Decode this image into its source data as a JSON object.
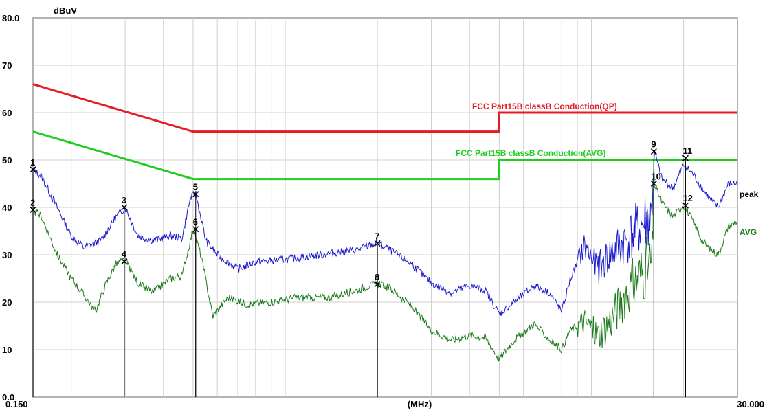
{
  "chart_data": {
    "type": "line",
    "title": "",
    "xlabel": "(MHz)",
    "ylabel": "dBuV",
    "x_scale": "log",
    "xlim": [
      0.15,
      30.0
    ],
    "ylim": [
      0,
      80
    ],
    "grid": true,
    "y_ticks": [
      {
        "value": 80,
        "label": "80.0"
      },
      {
        "value": 70,
        "label": "70"
      },
      {
        "value": 60,
        "label": "60"
      },
      {
        "value": 50,
        "label": "50"
      },
      {
        "value": 40,
        "label": "40"
      },
      {
        "value": 30,
        "label": "30"
      },
      {
        "value": 20,
        "label": "20"
      },
      {
        "value": 10,
        "label": "10"
      },
      {
        "value": 0,
        "label": "0.0"
      }
    ],
    "x_tick_labels": [
      {
        "value": 0.15,
        "label": "0.150"
      },
      {
        "value": 30.0,
        "label": "30.000"
      }
    ],
    "limit_lines": [
      {
        "name": "FCC  Part15B classB Conduction(QP)",
        "color": "#e51c23",
        "points": [
          [
            0.15,
            66
          ],
          [
            0.5,
            56
          ],
          [
            5.0,
            56
          ],
          [
            5.0,
            60
          ],
          [
            30.0,
            60
          ]
        ]
      },
      {
        "name": "FCC  Part15B classB Conduction(AVG)",
        "color": "#22cc22",
        "points": [
          [
            0.15,
            56
          ],
          [
            0.5,
            46
          ],
          [
            5.0,
            46
          ],
          [
            5.0,
            50
          ],
          [
            30.0,
            50
          ]
        ]
      }
    ],
    "series": [
      {
        "name": "peak",
        "color": "#1a1acc",
        "points": [
          [
            0.15,
            48.0
          ],
          [
            0.16,
            46.5
          ],
          [
            0.18,
            40.0
          ],
          [
            0.2,
            34.0
          ],
          [
            0.22,
            31.5
          ],
          [
            0.25,
            33.0
          ],
          [
            0.28,
            38.0
          ],
          [
            0.3,
            40.0
          ],
          [
            0.33,
            34.0
          ],
          [
            0.37,
            33.0
          ],
          [
            0.42,
            34.0
          ],
          [
            0.46,
            33.5
          ],
          [
            0.49,
            42.0
          ],
          [
            0.51,
            43.0
          ],
          [
            0.55,
            33.0
          ],
          [
            0.6,
            30.0
          ],
          [
            0.7,
            27.0
          ],
          [
            0.8,
            28.5
          ],
          [
            1.0,
            29.0
          ],
          [
            1.3,
            30.0
          ],
          [
            1.7,
            31.0
          ],
          [
            2.0,
            32.5
          ],
          [
            2.2,
            31.0
          ],
          [
            2.6,
            28.0
          ],
          [
            3.0,
            24.0
          ],
          [
            3.5,
            22.0
          ],
          [
            4.0,
            23.5
          ],
          [
            4.5,
            22.5
          ],
          [
            5.0,
            17.5
          ],
          [
            5.6,
            20.0
          ],
          [
            6.5,
            23.5
          ],
          [
            7.3,
            22.0
          ],
          [
            8.0,
            18.0
          ],
          [
            8.5,
            24.5
          ],
          [
            9.5,
            32.0
          ],
          [
            10.5,
            27.0
          ],
          [
            11.5,
            30.0
          ],
          [
            13.0,
            33.0
          ],
          [
            14.5,
            36.0
          ],
          [
            15.7,
            38.0
          ],
          [
            16.0,
            52.0
          ],
          [
            17.0,
            46.0
          ],
          [
            18.5,
            44.0
          ],
          [
            20.0,
            49.0
          ],
          [
            21.5,
            47.0
          ],
          [
            23.0,
            44.0
          ],
          [
            24.5,
            41.5
          ],
          [
            26.0,
            40.0
          ],
          [
            28.0,
            45.0
          ],
          [
            30.0,
            45.0
          ]
        ]
      },
      {
        "name": "AVG",
        "color": "#1a7a1a",
        "points": [
          [
            0.15,
            39.5
          ],
          [
            0.16,
            38.0
          ],
          [
            0.18,
            30.0
          ],
          [
            0.2,
            25.0
          ],
          [
            0.22,
            21.5
          ],
          [
            0.24,
            18.0
          ],
          [
            0.26,
            24.0
          ],
          [
            0.28,
            28.0
          ],
          [
            0.3,
            29.0
          ],
          [
            0.33,
            24.0
          ],
          [
            0.37,
            22.0
          ],
          [
            0.42,
            25.0
          ],
          [
            0.46,
            25.5
          ],
          [
            0.5,
            35.5
          ],
          [
            0.53,
            30.0
          ],
          [
            0.58,
            17.0
          ],
          [
            0.65,
            21.0
          ],
          [
            0.75,
            19.5
          ],
          [
            0.9,
            20.0
          ],
          [
            1.1,
            21.0
          ],
          [
            1.4,
            21.0
          ],
          [
            1.7,
            22.5
          ],
          [
            2.0,
            24.0
          ],
          [
            2.2,
            23.0
          ],
          [
            2.6,
            19.0
          ],
          [
            3.0,
            14.0
          ],
          [
            3.5,
            12.0
          ],
          [
            4.0,
            13.0
          ],
          [
            4.5,
            12.5
          ],
          [
            5.0,
            8.0
          ],
          [
            5.6,
            12.0
          ],
          [
            6.5,
            15.5
          ],
          [
            7.3,
            12.0
          ],
          [
            8.0,
            10.0
          ],
          [
            8.5,
            14.0
          ],
          [
            9.5,
            16.0
          ],
          [
            10.5,
            13.0
          ],
          [
            11.5,
            16.0
          ],
          [
            13.0,
            22.0
          ],
          [
            14.5,
            26.0
          ],
          [
            15.8,
            28.0
          ],
          [
            16.0,
            45.0
          ],
          [
            17.0,
            41.0
          ],
          [
            18.5,
            38.0
          ],
          [
            20.0,
            40.5
          ],
          [
            21.5,
            37.0
          ],
          [
            23.0,
            33.0
          ],
          [
            24.5,
            31.0
          ],
          [
            26.0,
            30.0
          ],
          [
            28.0,
            36.0
          ],
          [
            30.0,
            37.0
          ]
        ]
      }
    ],
    "markers": [
      {
        "label": "1",
        "freq": 0.15,
        "level": 48.0
      },
      {
        "label": "2",
        "freq": 0.15,
        "level": 39.5
      },
      {
        "label": "3",
        "freq": 0.298,
        "level": 40.0
      },
      {
        "label": "4",
        "freq": 0.298,
        "level": 28.6
      },
      {
        "label": "5",
        "freq": 0.51,
        "level": 42.8
      },
      {
        "label": "6",
        "freq": 0.51,
        "level": 35.4
      },
      {
        "label": "7",
        "freq": 2.0,
        "level": 32.4
      },
      {
        "label": "8",
        "freq": 2.0,
        "level": 23.8
      },
      {
        "label": "9",
        "freq": 16.0,
        "level": 51.8
      },
      {
        "label": "10",
        "freq": 16.0,
        "level": 45.0
      },
      {
        "label": "11",
        "freq": 20.3,
        "level": 50.4
      },
      {
        "label": "12",
        "freq": 20.3,
        "level": 40.4
      }
    ]
  }
}
